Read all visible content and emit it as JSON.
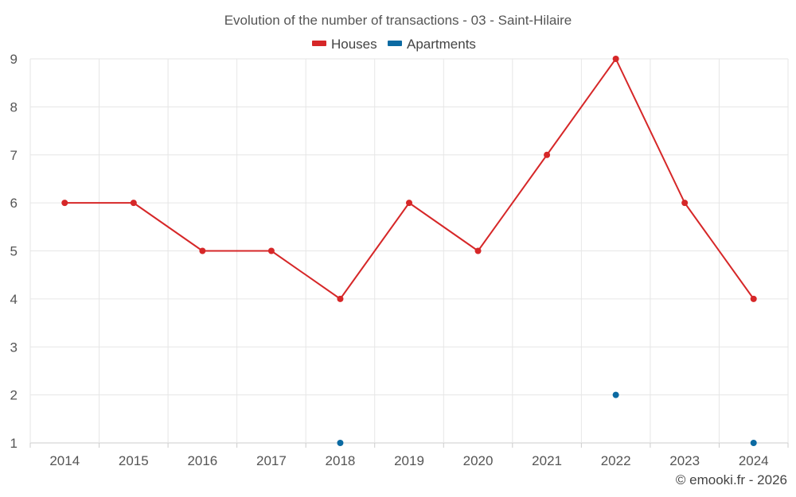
{
  "chart_data": {
    "type": "line",
    "title": "Evolution of the number of transactions - 03 - Saint-Hilaire",
    "categories": [
      "2014",
      "2015",
      "2016",
      "2017",
      "2018",
      "2019",
      "2020",
      "2021",
      "2022",
      "2023",
      "2024"
    ],
    "series": [
      {
        "name": "Houses",
        "color": "#d62728",
        "values": [
          6,
          6,
          5,
          5,
          4,
          6,
          5,
          7,
          9,
          6,
          4
        ],
        "show_line": true
      },
      {
        "name": "Apartments",
        "color": "#0b6aa2",
        "values": [
          null,
          null,
          null,
          null,
          1,
          null,
          null,
          null,
          2,
          null,
          1
        ],
        "show_line": false
      }
    ],
    "ylim": [
      1,
      9
    ],
    "yticks": [
      1,
      2,
      3,
      4,
      5,
      6,
      7,
      8,
      9
    ],
    "grid": true,
    "legend_position": "top-center",
    "credit": "© emooki.fr - 2026"
  }
}
